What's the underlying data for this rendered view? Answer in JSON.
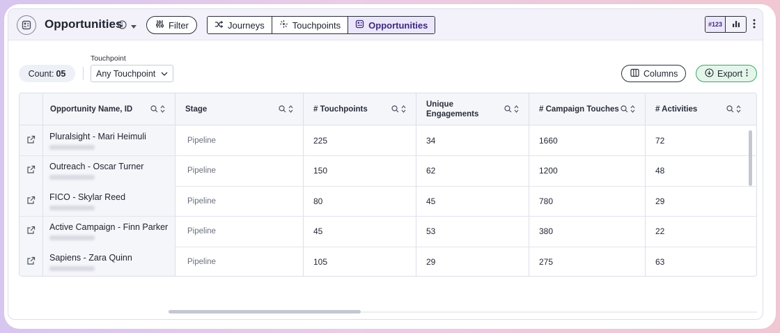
{
  "header": {
    "title": "Opportunities",
    "filter_label": "Filter",
    "tabs": [
      {
        "label": "Journeys",
        "icon": "shuffle-icon"
      },
      {
        "label": "Touchpoints",
        "icon": "sparkle-icon"
      },
      {
        "label": "Opportunities",
        "icon": "opportunity-icon",
        "active": true
      }
    ],
    "view_toggle": {
      "number_label": "#123",
      "chart_icon": "bar-chart-icon"
    }
  },
  "toolbar": {
    "count_label": "Count:",
    "count_value": "05",
    "touchpoint_label": "Touchpoint",
    "touchpoint_value": "Any Touchpoint",
    "columns_label": "Columns",
    "export_label": "Export"
  },
  "table": {
    "columns": [
      {
        "label": "Opportunity Name, ID"
      },
      {
        "label": "Stage"
      },
      {
        "label": "# Touchpoints"
      },
      {
        "label": "Unique Engagements"
      },
      {
        "label": "# Campaign Touches"
      },
      {
        "label": "# Activities"
      }
    ],
    "rows": [
      {
        "name": "Pluralsight - Mari Heimuli",
        "stage": "Pipeline",
        "touchpoints": "225",
        "engagements": "34",
        "campaign": "1660",
        "activities": "72"
      },
      {
        "name": "Outreach - Oscar Turner",
        "stage": "Pipeline",
        "touchpoints": "150",
        "engagements": "62",
        "campaign": "1200",
        "activities": "48"
      },
      {
        "name": "FICO - Skylar Reed",
        "stage": "Pipeline",
        "touchpoints": "80",
        "engagements": "45",
        "campaign": "780",
        "activities": "29"
      },
      {
        "name": "Active Campaign - Finn Parker",
        "stage": "Pipeline",
        "touchpoints": "45",
        "engagements": "53",
        "campaign": "380",
        "activities": "22"
      },
      {
        "name": "Sapiens - Zara Quinn",
        "stage": "Pipeline",
        "touchpoints": "105",
        "engagements": "29",
        "campaign": "275",
        "activities": "63"
      }
    ]
  },
  "colors": {
    "accent": "#3b2a7a",
    "export_green": "#3aa66b"
  }
}
